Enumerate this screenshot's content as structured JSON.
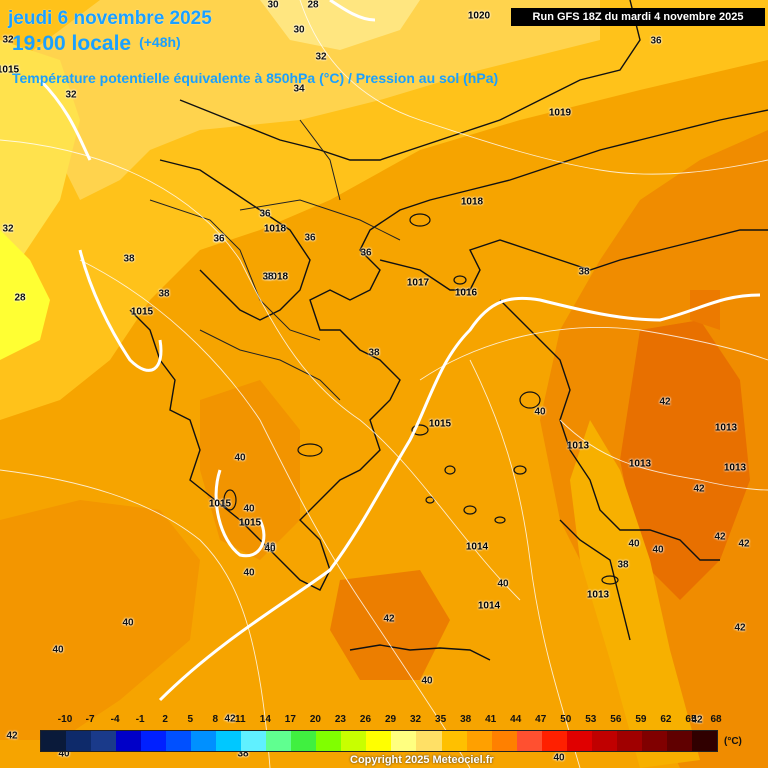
{
  "header": {
    "date_line": "jeudi 6 novembre 2025",
    "time_line": "19:00 locale",
    "lead_time": "(+48h)",
    "variable_line": "Température potentielle équivalente à 850hPa (°C) / Pression au sol (hPa)",
    "run_info": "Run GFS 18Z du mardi 4 novembre 2025"
  },
  "pressure_labels": [
    "1020",
    "1019",
    "1018",
    "1018",
    "1018",
    "1017",
    "1016",
    "1015",
    "1015",
    "1015",
    "1015",
    "1014",
    "1014",
    "1013",
    "1013",
    "1013",
    "1013",
    "1013",
    "1015"
  ],
  "temperature_labels": [
    "30",
    "28",
    "30",
    "32",
    "32",
    "34",
    "36",
    "32",
    "32",
    "28",
    "36",
    "36",
    "36",
    "36",
    "38",
    "38",
    "38",
    "38",
    "38",
    "40",
    "40",
    "40",
    "40",
    "42",
    "40",
    "40",
    "40",
    "40",
    "42",
    "42",
    "42",
    "42",
    "42",
    "42",
    "40",
    "40",
    "38",
    "40",
    "42",
    "40",
    "42",
    "38",
    "40",
    "40",
    "36"
  ],
  "legend": {
    "ticks": [
      "-10",
      "-7",
      "-4",
      "-1",
      "2",
      "5",
      "8",
      "11",
      "14",
      "17",
      "20",
      "23",
      "26",
      "29",
      "32",
      "35",
      "38",
      "41",
      "44",
      "47",
      "50",
      "53",
      "56",
      "59",
      "62",
      "65",
      "68"
    ],
    "colors": [
      "#0a1a3a",
      "#0e2a6a",
      "#1a3a8a",
      "#0000c8",
      "#0020ff",
      "#0050ff",
      "#0090ff",
      "#00c8ff",
      "#60f0ff",
      "#60ff90",
      "#40f040",
      "#80ff00",
      "#c8ff00",
      "#ffff00",
      "#ffff80",
      "#ffe066",
      "#ffc000",
      "#ffa000",
      "#ff8000",
      "#ff5030",
      "#ff2000",
      "#e00000",
      "#c00000",
      "#a00000",
      "#800000",
      "#600000",
      "#300000"
    ],
    "unit": "(°C)",
    "copyright": "Copyright 2025 Meteociel.fr"
  }
}
